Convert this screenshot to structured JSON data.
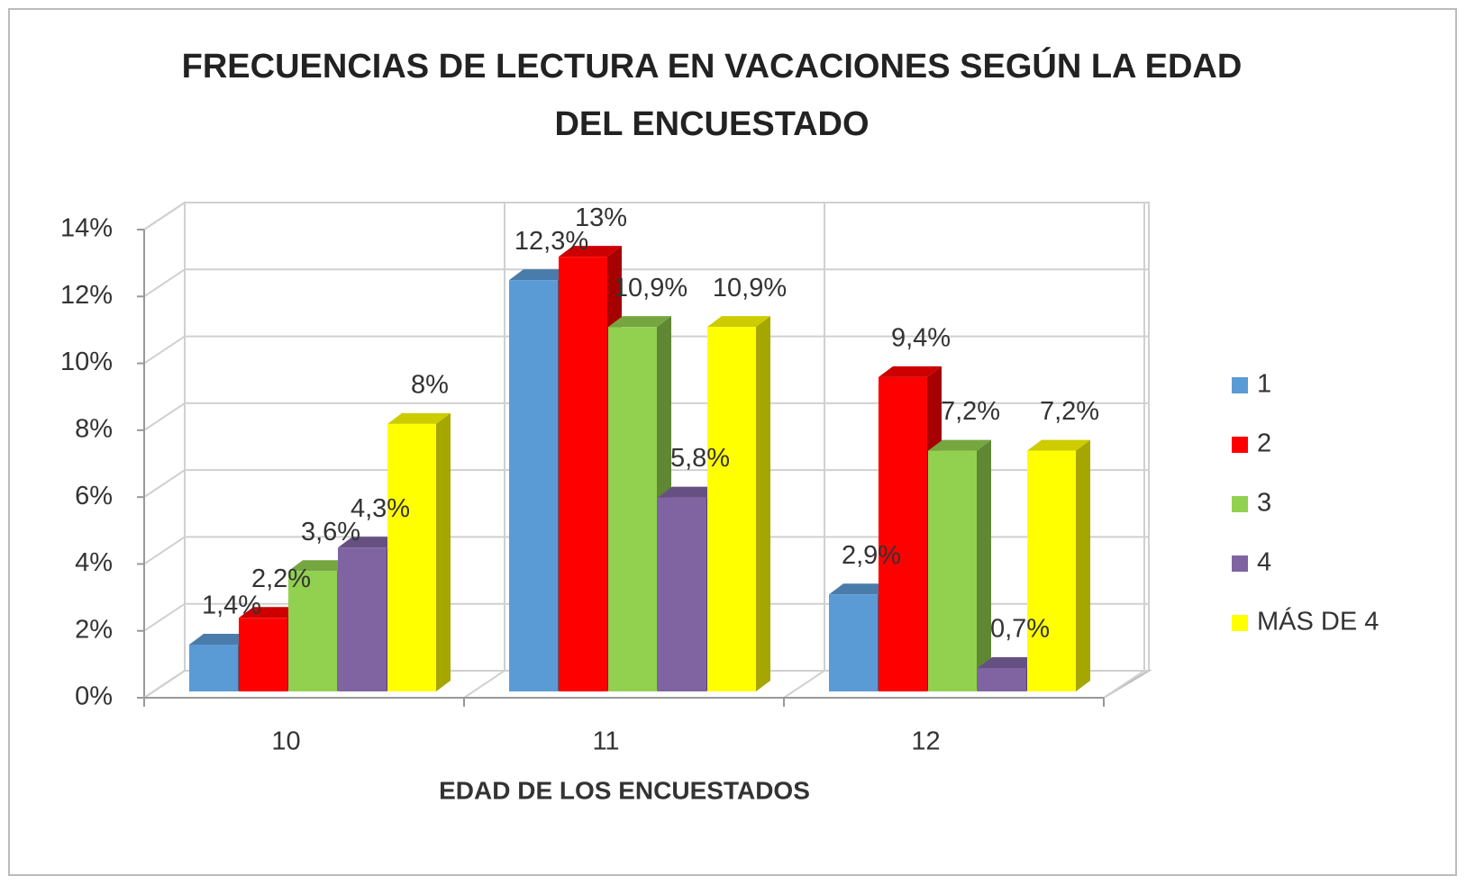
{
  "chart_data": {
    "type": "bar3d",
    "title": "FRECUENCIAS DE LECTURA EN VACACIONES SEGÚN LA EDAD DEL ENCUESTADO",
    "x_label": "EDAD DE LOS ENCUESTADOS",
    "categories": [
      "10",
      "11",
      "12"
    ],
    "series": [
      {
        "name": "1",
        "color": "#5b9bd5",
        "values": [
          1.4,
          12.3,
          2.9
        ],
        "value_labels": [
          "1,4%",
          "12,3%",
          "2,9%"
        ]
      },
      {
        "name": "2",
        "color": "#ff0000",
        "values": [
          2.2,
          13,
          9.4
        ],
        "value_labels": [
          "2,2%",
          "13%",
          "9,4%"
        ]
      },
      {
        "name": "3",
        "color": "#92d050",
        "values": [
          3.6,
          10.9,
          7.2
        ],
        "value_labels": [
          "3,6%",
          "10,9%",
          "7,2%"
        ]
      },
      {
        "name": "4",
        "color": "#8064a2",
        "values": [
          4.3,
          5.8,
          0.7
        ],
        "value_labels": [
          "4,3%",
          "5,8%",
          "0,7%"
        ]
      },
      {
        "name": "MÁS DE 4",
        "color": "#ffff00",
        "values": [
          8,
          10.9,
          7.2
        ],
        "value_labels": [
          "8%",
          "10,9%",
          "7,2%"
        ]
      }
    ],
    "ylim": [
      0,
      14
    ],
    "yticks": [
      {
        "value": 0,
        "label": "0%"
      },
      {
        "value": 2,
        "label": "2%"
      },
      {
        "value": 4,
        "label": "4%"
      },
      {
        "value": 6,
        "label": "6%"
      },
      {
        "value": 8,
        "label": "8%"
      },
      {
        "value": 10,
        "label": "10%"
      },
      {
        "value": 12,
        "label": "12%"
      },
      {
        "value": 14,
        "label": "14%"
      }
    ],
    "grid": true,
    "legend": "right"
  }
}
